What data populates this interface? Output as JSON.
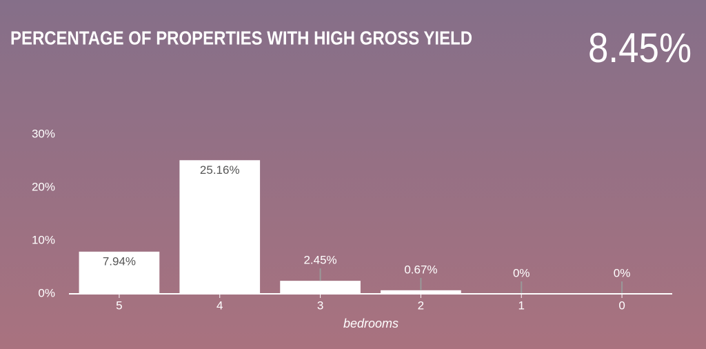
{
  "chart_data": {
    "type": "bar",
    "title": "PERCENTAGE OF PROPERTIES WITH HIGH GROSS YIELD",
    "kpi": "8.45%",
    "x_label": "bedrooms",
    "categories": [
      "5",
      "4",
      "3",
      "2",
      "1",
      "0"
    ],
    "values": [
      7.94,
      25.16,
      2.45,
      0.67,
      0,
      0
    ],
    "value_labels": [
      "7.94%",
      "25.16%",
      "2.45%",
      "0.67%",
      "0%",
      "0%"
    ],
    "color": "#ffffff",
    "ylim": [
      0,
      30
    ],
    "yticks": [
      {
        "value": 0,
        "label": "0%"
      },
      {
        "value": 10,
        "label": "10%"
      },
      {
        "value": 20,
        "label": "20%"
      },
      {
        "value": 30,
        "label": "30%"
      }
    ],
    "grid": false
  }
}
